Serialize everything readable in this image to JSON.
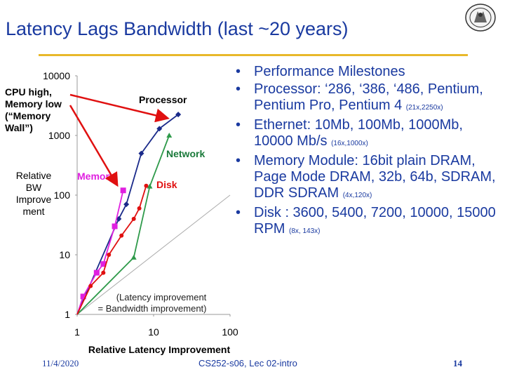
{
  "slide": {
    "title": "Latency Lags Bandwidth (last ~20 years)",
    "footer_date": "11/4/2020",
    "footer_course": "CS252-s06, Lec 02-intro",
    "footer_page": "14"
  },
  "annotations": {
    "cpu_note": [
      "CPU high,",
      "Memory low",
      "(“Memory",
      "Wall”)"
    ],
    "ylabel": [
      "Relative",
      "BW",
      "Improve",
      "ment"
    ]
  },
  "bullets": [
    {
      "text": "Performance Milestones",
      "small": ""
    },
    {
      "text": "Processor: ‘286, ‘386, ‘486, Pentium, Pentium Pro, Pentium 4",
      "small": "(21x,2250x)"
    },
    {
      "text": "Ethernet: 10Mb, 100Mb, 1000Mb, 10000 Mb/s",
      "small": "(16x,1000x)"
    },
    {
      "text": "Memory Module: 16bit plain DRAM, Page Mode DRAM, 32b, 64b, SDRAM, DDR SDRAM",
      "small": "(4x,120x)"
    },
    {
      "text": "Disk : 3600, 5400, 7200, 10000, 15000 RPM",
      "small": "(8x, 143x)"
    }
  ],
  "chart_data": {
    "type": "line",
    "xscale": "log",
    "yscale": "log",
    "xlim": [
      1,
      100
    ],
    "ylim": [
      1,
      10000
    ],
    "xlabel": "Relative Latency Improvement",
    "x_ticks": [
      "1",
      "10",
      "100"
    ],
    "y_ticks": [
      "1",
      "10",
      "100",
      "1000",
      "10000"
    ],
    "reference_label": [
      "(Latency improvement",
      "= Bandwidth improvement)"
    ],
    "series": [
      {
        "name": "Processor",
        "color": "#1a2a8a",
        "marker": "diamond",
        "points": [
          [
            1,
            1
          ],
          [
            3.5,
            40
          ],
          [
            4.4,
            70
          ],
          [
            6.9,
            500
          ],
          [
            11.9,
            1300
          ],
          [
            21,
            2250
          ]
        ]
      },
      {
        "name": "Network",
        "color": "#2e9a4a",
        "marker": "triangle",
        "points": [
          [
            1,
            1
          ],
          [
            5.5,
            9
          ],
          [
            8.9,
            140
          ],
          [
            16,
            1000
          ]
        ]
      },
      {
        "name": "Memory",
        "color": "#e020e0",
        "marker": "square",
        "points": [
          [
            1,
            1
          ],
          [
            1.2,
            2
          ],
          [
            1.8,
            5
          ],
          [
            2.2,
            7
          ],
          [
            3.1,
            30
          ],
          [
            4,
            120
          ]
        ]
      },
      {
        "name": "Disk",
        "color": "#e01010",
        "marker": "circle",
        "points": [
          [
            1,
            1
          ],
          [
            1.5,
            3
          ],
          [
            2.2,
            5
          ],
          [
            2.6,
            10
          ],
          [
            3.8,
            21
          ],
          [
            5.5,
            40
          ],
          [
            6.5,
            60
          ],
          [
            8,
            143
          ]
        ]
      }
    ]
  }
}
